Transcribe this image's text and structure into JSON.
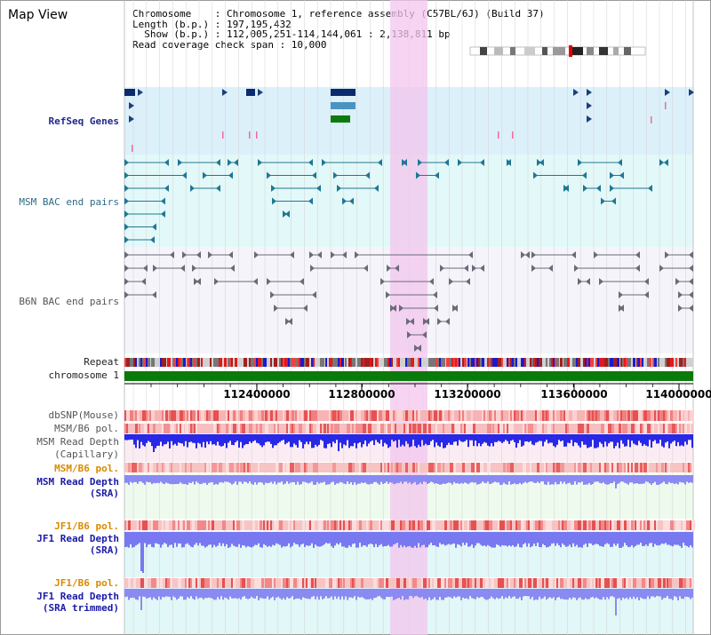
{
  "view": {
    "title": "Map View"
  },
  "info": {
    "chromosome_line": "Chromosome    : Chromosome 1, reference assembly (C57BL/6J) (Build 37)",
    "length_line": "Length (b.p.) : 197,195,432",
    "show_line": "  Show (b.p.) : 112,005,251-114,144,061 : 2,138,811 bp",
    "coverage_line": "Read coverage check span : 10,000"
  },
  "tracks": {
    "refseq": "RefSeq Genes",
    "msm_bac": "MSM BAC end pairs",
    "b6n_bac": "B6N BAC end pairs",
    "repeat": "Repeat",
    "chromosome": "chromosome 1",
    "dbsnp": "dbSNP(Mouse)",
    "msm_b6_pol_1": "MSM/B6 pol.",
    "msm_depth_cap_1": "MSM Read Depth",
    "msm_depth_cap_2": "(Capillary)",
    "msm_b6_pol_2": "MSM/B6 pol.",
    "msm_depth_sra_1": "MSM Read Depth",
    "msm_depth_sra_2": "(SRA)",
    "jf1_b6_pol_1": "JF1/B6 pol.",
    "jf1_depth_sra_1": "JF1 Read Depth",
    "jf1_depth_sra_2": "(SRA)",
    "jf1_b6_pol_2": "JF1/B6 pol.",
    "jf1_depth_trim_1": "JF1 Read Depth",
    "jf1_depth_trim_2": "(SRA trimmed)"
  },
  "axis": {
    "ticks": [
      "112400000",
      "112800000",
      "113200000",
      "113600000",
      "114000000"
    ]
  },
  "colors": {
    "highlight": "#f7d7f3",
    "refseq_bg": "#dcf0fa",
    "msm_bg": "#e3f8f8",
    "b6n_bg": "#f4f4fa",
    "chromosome_bar": "#0a7a0a",
    "depth_dark": "#2f2fe0",
    "depth_light": "#8f8ff5",
    "snp_red": "#e74848"
  }
}
